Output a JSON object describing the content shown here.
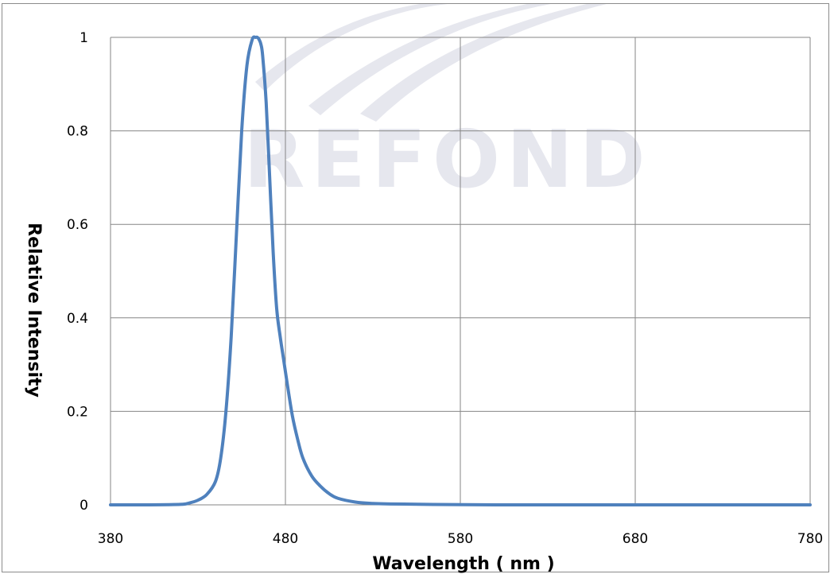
{
  "colors": {
    "series": "#4f81bd",
    "grid": "#868686",
    "watermark": "#e6e7ee"
  },
  "watermark": {
    "text": "REFOND"
  },
  "chart_data": {
    "type": "line",
    "title": "",
    "xlabel": "Wavelength ( nm )",
    "ylabel": "Relative  Intensity",
    "xlim": [
      380,
      780
    ],
    "ylim": [
      0,
      1
    ],
    "x_ticks": [
      380,
      480,
      580,
      680,
      780
    ],
    "x_tick_labels": [
      "380",
      "480",
      "580",
      "680",
      "780"
    ],
    "y_ticks": [
      0,
      0.2,
      0.4,
      0.6,
      0.8,
      1
    ],
    "y_tick_labels": [
      "0",
      "0.2",
      "0.4",
      "0.6",
      "0.8",
      "1"
    ],
    "grid": true,
    "legend": "none",
    "series": [
      {
        "x": [
          380,
          400,
          420,
          425,
          430,
          435,
          440,
          443,
          446,
          449,
          452,
          455,
          458,
          461,
          463,
          464,
          465,
          466,
          467,
          469,
          471,
          473,
          475,
          477,
          479,
          481,
          484,
          487,
          490,
          495,
          500,
          505,
          510,
          520,
          530,
          540,
          560,
          600,
          700,
          780
        ],
        "y": [
          0.0,
          0.0,
          0.001,
          0.004,
          0.01,
          0.022,
          0.05,
          0.1,
          0.2,
          0.36,
          0.58,
          0.8,
          0.94,
          0.995,
          1.0,
          1.0,
          0.995,
          0.985,
          0.96,
          0.86,
          0.7,
          0.54,
          0.42,
          0.36,
          0.31,
          0.26,
          0.19,
          0.14,
          0.1,
          0.062,
          0.04,
          0.024,
          0.014,
          0.006,
          0.003,
          0.002,
          0.001,
          0.0,
          0.0,
          0.0
        ]
      }
    ]
  }
}
